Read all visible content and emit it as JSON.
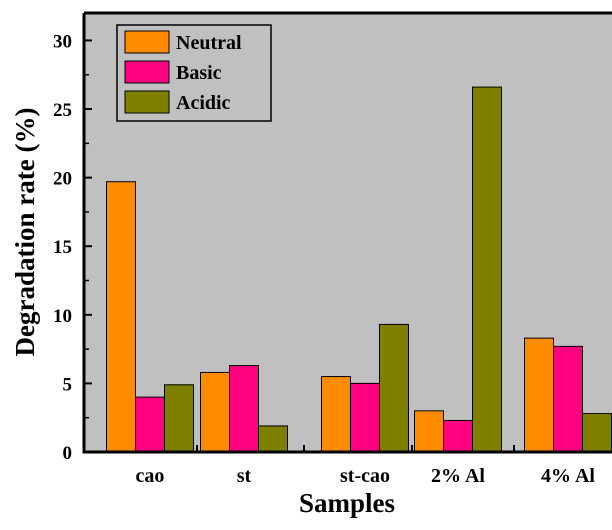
{
  "chart_data": {
    "type": "bar",
    "title": "",
    "xlabel": "Samples",
    "ylabel": "Degradation rate (%)",
    "ylim": [
      0,
      32
    ],
    "yticks": [
      0,
      5,
      10,
      15,
      20,
      25,
      30
    ],
    "categories": [
      "cao",
      "st",
      "st-cao",
      "2% Al",
      "4% Al"
    ],
    "series": [
      {
        "name": "Neutral",
        "color": "#ff8c00",
        "values": [
          19.7,
          5.8,
          5.5,
          3.0,
          8.3
        ]
      },
      {
        "name": "Basic",
        "color": "#ff0080",
        "values": [
          4.0,
          6.3,
          5.0,
          2.3,
          7.7
        ]
      },
      {
        "name": "Acidic",
        "color": "#808000",
        "values": [
          4.9,
          1.9,
          9.3,
          26.6,
          2.8
        ]
      }
    ],
    "legend_position": "top-left",
    "grid": false,
    "plot_background": "#c0c0c0"
  }
}
